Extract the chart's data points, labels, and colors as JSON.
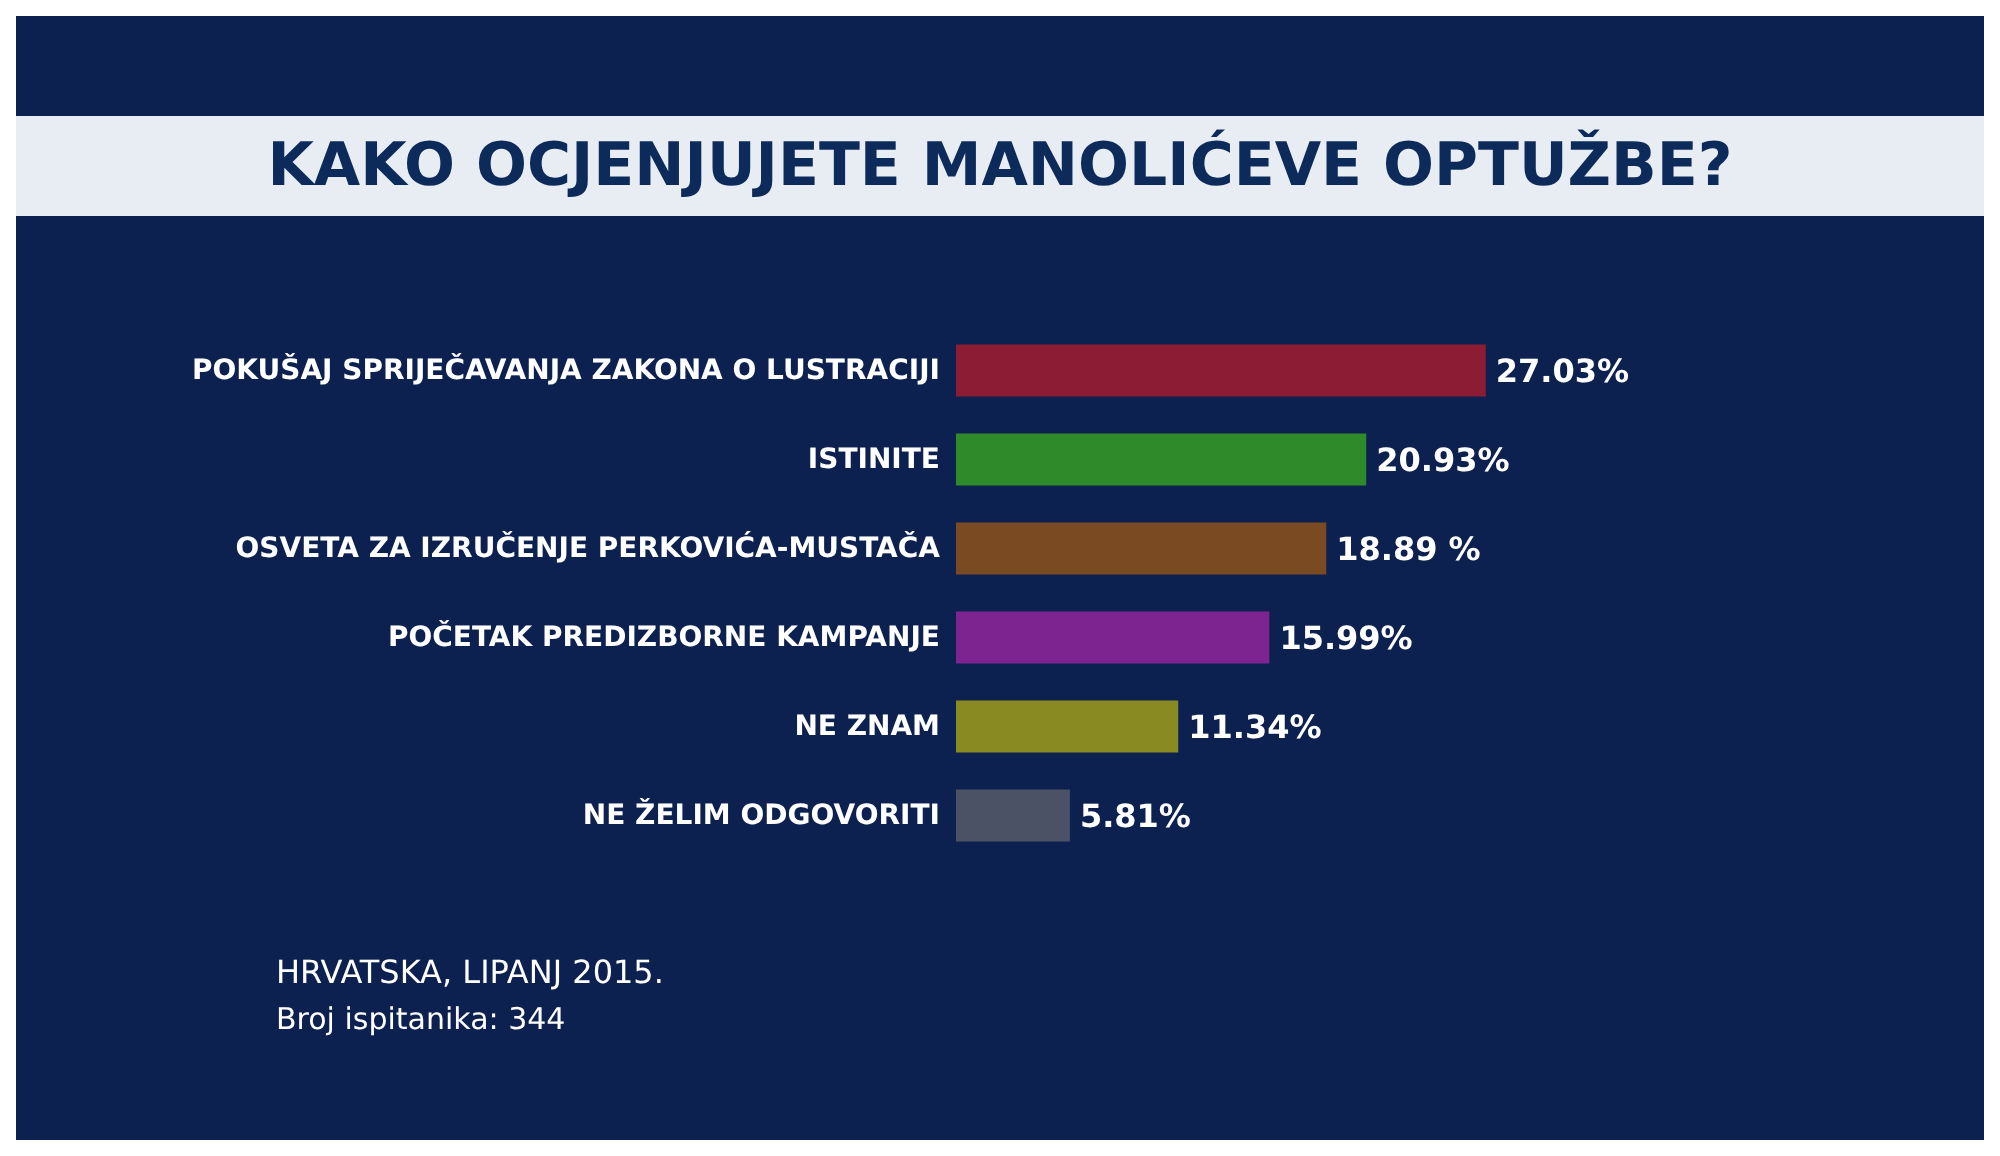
{
  "chart_data": {
    "type": "bar",
    "orientation": "horizontal",
    "title": "KAKO OCJENJUJETE MANOLIĆEVE OPTUŽBE?",
    "categories": [
      "POKUŠAJ SPRIJEČAVANJA ZAKONA O LUSTRACIJI",
      "ISTINITE",
      "OSVETA ZA IZRUČENJE PERKOVIĆA-MUSTAČA",
      "POČETAK PREDIZBORNE KAMPANJE",
      "NE ZNAM",
      "NE ŽELIM ODGOVORITI"
    ],
    "values": [
      27.03,
      20.93,
      18.89,
      15.99,
      11.34,
      5.81
    ],
    "value_labels": [
      "27.03%",
      "20.93%",
      "18.89 %",
      "15.99%",
      "11.34%",
      "5.81%"
    ],
    "colors": [
      "#8c1c34",
      "#2f8a2a",
      "#7a4a22",
      "#7d2490",
      "#8a8a22",
      "#4b5266"
    ],
    "annotations": [
      "HRVATSKA, LIPANJ 2015.",
      "Broj ispitanika: 344"
    ]
  }
}
